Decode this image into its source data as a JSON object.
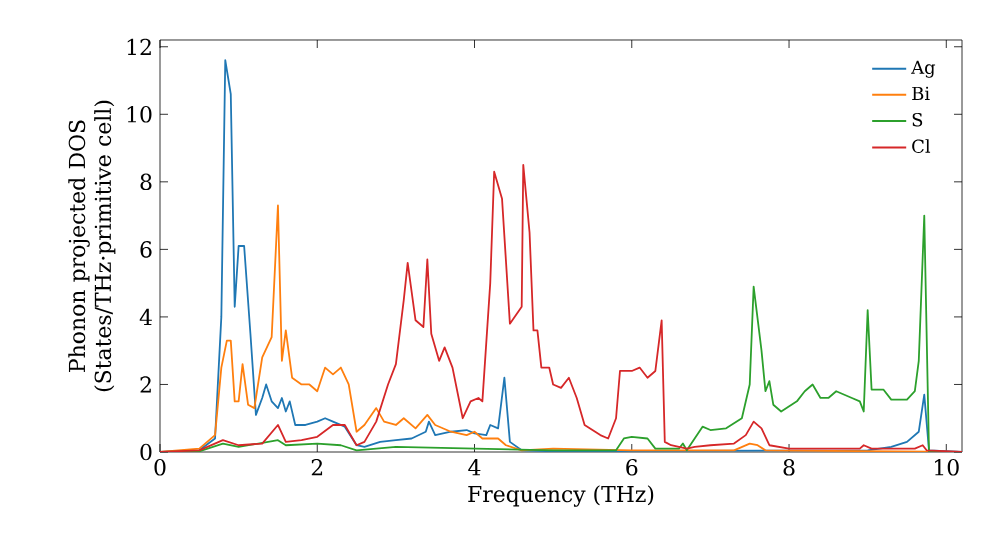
{
  "chart_data": {
    "type": "line",
    "xlabel": "Frequency (THz)",
    "ylabel": "Phonon projected DOS (States/THz·primitive cell)",
    "xlim": [
      0,
      10.2
    ],
    "ylim": [
      0,
      12.2
    ],
    "xticks": [
      0,
      2,
      4,
      6,
      8,
      10
    ],
    "yticks": [
      0,
      2,
      4,
      6,
      8,
      10,
      12
    ],
    "legend": "top right",
    "grid": false,
    "marker": "none",
    "line_style": "solid",
    "series": [
      {
        "name": "Ag",
        "color": "#1f77b4",
        "x": [
          0,
          0.5,
          0.7,
          0.78,
          0.83,
          0.9,
          0.95,
          1.0,
          1.07,
          1.15,
          1.22,
          1.3,
          1.35,
          1.42,
          1.5,
          1.55,
          1.6,
          1.65,
          1.72,
          1.85,
          2.0,
          2.1,
          2.2,
          2.35,
          2.5,
          2.6,
          2.8,
          3.0,
          3.2,
          3.38,
          3.42,
          3.5,
          3.7,
          3.9,
          4.0,
          4.15,
          4.2,
          4.3,
          4.38,
          4.45,
          4.6,
          5.0,
          9.0,
          9.3,
          9.5,
          9.65,
          9.72,
          9.78,
          10.2
        ],
        "values": [
          0,
          0.05,
          0.4,
          4,
          11.6,
          10.6,
          4.3,
          6.1,
          6.1,
          3.5,
          1.1,
          1.6,
          2.0,
          1.5,
          1.3,
          1.6,
          1.2,
          1.5,
          0.8,
          0.8,
          0.9,
          1.0,
          0.9,
          0.75,
          0.2,
          0.15,
          0.3,
          0.35,
          0.4,
          0.6,
          0.9,
          0.5,
          0.6,
          0.65,
          0.55,
          0.5,
          0.8,
          0.7,
          2.2,
          0.3,
          0.05,
          0.02,
          0.05,
          0.15,
          0.3,
          0.6,
          1.7,
          0.05,
          0
        ]
      },
      {
        "name": "Bi",
        "color": "#ff7f0e",
        "x": [
          0,
          0.5,
          0.7,
          0.78,
          0.85,
          0.9,
          0.95,
          1.0,
          1.05,
          1.12,
          1.2,
          1.3,
          1.42,
          1.5,
          1.55,
          1.6,
          1.68,
          1.8,
          1.9,
          2.0,
          2.1,
          2.2,
          2.3,
          2.4,
          2.5,
          2.6,
          2.75,
          2.85,
          3.0,
          3.1,
          3.25,
          3.4,
          3.5,
          3.7,
          3.9,
          4.0,
          4.1,
          4.3,
          4.4,
          4.6,
          5.0,
          6.0,
          7.3,
          7.5,
          7.6,
          7.7,
          10.2
        ],
        "values": [
          0,
          0.1,
          0.5,
          2.5,
          3.3,
          3.3,
          1.5,
          1.5,
          2.6,
          1.4,
          1.3,
          2.8,
          3.4,
          7.3,
          2.7,
          3.6,
          2.2,
          2.0,
          2.0,
          1.8,
          2.5,
          2.3,
          2.5,
          2.0,
          0.6,
          0.8,
          1.3,
          0.9,
          0.8,
          1.0,
          0.7,
          1.1,
          0.8,
          0.6,
          0.5,
          0.6,
          0.4,
          0.4,
          0.2,
          0.05,
          0.1,
          0.05,
          0.05,
          0.25,
          0.2,
          0.05,
          0
        ]
      },
      {
        "name": "S",
        "color": "#2ca02c",
        "x": [
          0,
          0.5,
          0.8,
          1.0,
          1.5,
          1.6,
          2.0,
          2.3,
          2.5,
          3.0,
          4.0,
          5.0,
          5.8,
          5.9,
          6.0,
          6.2,
          6.3,
          6.6,
          6.65,
          6.7,
          6.8,
          6.9,
          7.0,
          7.2,
          7.4,
          7.5,
          7.55,
          7.65,
          7.7,
          7.75,
          7.8,
          7.9,
          8.1,
          8.2,
          8.3,
          8.4,
          8.5,
          8.6,
          8.8,
          8.9,
          8.95,
          9.0,
          9.05,
          9.2,
          9.3,
          9.5,
          9.6,
          9.65,
          9.72,
          9.78,
          10.2
        ],
        "values": [
          0,
          0.02,
          0.25,
          0.15,
          0.35,
          0.2,
          0.25,
          0.2,
          0.05,
          0.15,
          0.1,
          0.05,
          0.05,
          0.4,
          0.45,
          0.4,
          0.1,
          0.1,
          0.25,
          0.05,
          0.4,
          0.75,
          0.65,
          0.7,
          1.0,
          2.0,
          4.9,
          3.0,
          1.8,
          2.1,
          1.4,
          1.2,
          1.5,
          1.8,
          2.0,
          1.6,
          1.6,
          1.8,
          1.6,
          1.5,
          1.2,
          4.2,
          1.85,
          1.85,
          1.55,
          1.55,
          1.8,
          2.7,
          7.0,
          0,
          0
        ]
      },
      {
        "name": "Cl",
        "color": "#d62728",
        "x": [
          0,
          0.5,
          0.8,
          1.0,
          1.3,
          1.5,
          1.6,
          1.8,
          2.0,
          2.2,
          2.35,
          2.5,
          2.6,
          2.75,
          2.9,
          3.0,
          3.1,
          3.15,
          3.25,
          3.35,
          3.4,
          3.45,
          3.55,
          3.62,
          3.72,
          3.85,
          3.95,
          4.05,
          4.1,
          4.2,
          4.25,
          4.35,
          4.45,
          4.6,
          4.62,
          4.7,
          4.75,
          4.8,
          4.85,
          4.95,
          5.0,
          5.1,
          5.2,
          5.3,
          5.4,
          5.6,
          5.7,
          5.8,
          5.85,
          6.0,
          6.1,
          6.2,
          6.3,
          6.38,
          6.42,
          6.5,
          6.7,
          6.8,
          7.0,
          7.3,
          7.45,
          7.55,
          7.65,
          7.75,
          8.0,
          8.9,
          8.95,
          9.05,
          9.6,
          9.7,
          9.75,
          10.2
        ],
        "values": [
          0,
          0.05,
          0.35,
          0.2,
          0.25,
          0.8,
          0.3,
          0.35,
          0.45,
          0.8,
          0.8,
          0.2,
          0.3,
          0.9,
          2.0,
          2.6,
          4.5,
          5.6,
          3.9,
          3.7,
          5.7,
          3.5,
          2.7,
          3.1,
          2.5,
          1.0,
          1.5,
          1.6,
          1.5,
          5.0,
          8.3,
          7.5,
          3.8,
          4.3,
          8.5,
          6.5,
          3.6,
          3.6,
          2.5,
          2.5,
          2.0,
          1.9,
          2.2,
          1.6,
          0.8,
          0.5,
          0.4,
          1.0,
          2.4,
          2.4,
          2.5,
          2.2,
          2.4,
          3.9,
          0.3,
          0.2,
          0.1,
          0.15,
          0.2,
          0.25,
          0.5,
          0.9,
          0.7,
          0.2,
          0.1,
          0.1,
          0.2,
          0.1,
          0.1,
          0.2,
          0.05,
          0
        ]
      }
    ]
  }
}
